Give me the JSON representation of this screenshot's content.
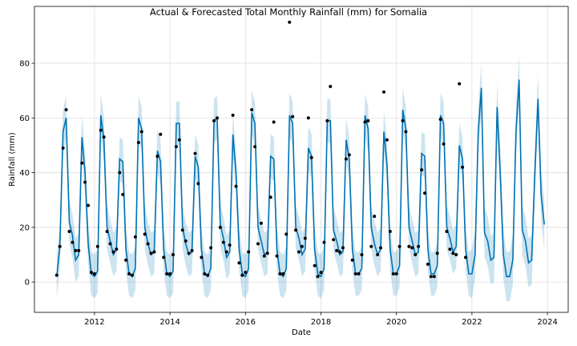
{
  "chart_data": {
    "type": "forecast",
    "title": "Actual & Forecasted Total Monthly Rainfall (mm) for Somalia",
    "x_label": "Date",
    "y_label": "Rainfall (mm)",
    "xlim": [
      2010.41,
      2024.55
    ],
    "ylim": [
      -11.1,
      100.8
    ],
    "xticks": [
      2012,
      2014,
      2016,
      2018,
      2020,
      2022,
      2024
    ],
    "yticks": [
      0,
      20,
      40,
      60,
      80
    ],
    "grid": true,
    "line_color": "#0072b2",
    "band_color": "#0072b2",
    "point_color": "#000000",
    "x": [
      2011.0,
      2011.083,
      2011.167,
      2011.25,
      2011.333,
      2011.417,
      2011.5,
      2011.583,
      2011.667,
      2011.75,
      2011.833,
      2011.917,
      2012.0,
      2012.083,
      2012.167,
      2012.25,
      2012.333,
      2012.417,
      2012.5,
      2012.583,
      2012.667,
      2012.75,
      2012.833,
      2012.917,
      2013.0,
      2013.083,
      2013.167,
      2013.25,
      2013.333,
      2013.417,
      2013.5,
      2013.583,
      2013.667,
      2013.75,
      2013.833,
      2013.917,
      2014.0,
      2014.083,
      2014.167,
      2014.25,
      2014.333,
      2014.417,
      2014.5,
      2014.583,
      2014.667,
      2014.75,
      2014.833,
      2014.917,
      2015.0,
      2015.083,
      2015.167,
      2015.25,
      2015.333,
      2015.417,
      2015.5,
      2015.583,
      2015.667,
      2015.75,
      2015.833,
      2015.917,
      2016.0,
      2016.083,
      2016.167,
      2016.25,
      2016.333,
      2016.417,
      2016.5,
      2016.583,
      2016.667,
      2016.75,
      2016.833,
      2016.917,
      2017.0,
      2017.083,
      2017.167,
      2017.25,
      2017.333,
      2017.417,
      2017.5,
      2017.583,
      2017.667,
      2017.75,
      2017.833,
      2017.917,
      2018.0,
      2018.083,
      2018.167,
      2018.25,
      2018.333,
      2018.417,
      2018.5,
      2018.583,
      2018.667,
      2018.75,
      2018.833,
      2018.917,
      2019.0,
      2019.083,
      2019.167,
      2019.25,
      2019.333,
      2019.417,
      2019.5,
      2019.583,
      2019.667,
      2019.75,
      2019.833,
      2019.917,
      2020.0,
      2020.083,
      2020.167,
      2020.25,
      2020.333,
      2020.417,
      2020.5,
      2020.583,
      2020.667,
      2020.75,
      2020.833,
      2020.917,
      2021.0,
      2021.083,
      2021.167,
      2021.25,
      2021.333,
      2021.417,
      2021.5,
      2021.583,
      2021.667,
      2021.75,
      2021.833,
      2021.917,
      2022.0,
      2022.083,
      2022.167,
      2022.25,
      2022.333,
      2022.417,
      2022.5,
      2022.583,
      2022.667,
      2022.75,
      2022.833,
      2022.917,
      2023.0,
      2023.083,
      2023.167,
      2023.25,
      2023.333,
      2023.417,
      2023.5,
      2023.583,
      2023.667,
      2023.75,
      2023.833,
      2023.917
    ],
    "observed": [
      2.5,
      13,
      49,
      63,
      18.5,
      14.5,
      11.5,
      11.5,
      43.5,
      36.5,
      28,
      3.5,
      3,
      13,
      55.5,
      53,
      18.5,
      14,
      11,
      12,
      40,
      32,
      8,
      3,
      2.5,
      16.5,
      51,
      55,
      17.5,
      14,
      10.5,
      11,
      46,
      54,
      9,
      3,
      3,
      10,
      49.5,
      52,
      19,
      15,
      10.5,
      11.5,
      47,
      36,
      9,
      3,
      2.5,
      12.5,
      59,
      60,
      20,
      14.5,
      11,
      13.5,
      61,
      35,
      7,
      2.5,
      3.5,
      11,
      63,
      49.5,
      14,
      21.5,
      9.5,
      10.5,
      31,
      58.5,
      9.5,
      3,
      3,
      17.5,
      95,
      60.5,
      19,
      11,
      13,
      16,
      60,
      45.5,
      6,
      2,
      3.5,
      14.5,
      59,
      71.5,
      15.5,
      11.5,
      11,
      12.5,
      45,
      46.5,
      8,
      3,
      3,
      10,
      58.5,
      59,
      13,
      24,
      10,
      12.5,
      69.5,
      52,
      18.5,
      3,
      3,
      13,
      59,
      55,
      13,
      12.5,
      10,
      13,
      41,
      32.5,
      6.5,
      2,
      2,
      10.5,
      59.5,
      50.5,
      18.5,
      12,
      10.5,
      10,
      72.5,
      42,
      9,
      null,
      null,
      null,
      null,
      null,
      null,
      null,
      null,
      null,
      null,
      null,
      null,
      null,
      null,
      null,
      null,
      null,
      null,
      null,
      null,
      null,
      null,
      null,
      null,
      null
    ],
    "yhat": [
      2,
      13,
      55,
      60,
      22,
      17,
      8,
      10,
      53,
      40,
      14,
      3,
      2,
      4,
      61,
      52,
      20,
      15,
      10,
      12,
      45,
      44,
      12,
      3,
      2,
      5,
      60,
      56,
      20,
      14,
      10,
      11,
      48,
      44,
      12,
      3,
      2,
      4,
      58,
      58,
      20,
      14,
      10,
      11,
      46,
      42,
      12,
      3,
      2,
      5,
      59,
      60,
      21,
      16,
      9,
      11,
      54,
      40,
      12,
      3,
      2,
      5,
      62,
      58,
      20,
      15,
      10,
      11,
      46,
      45,
      12,
      3,
      2,
      5,
      61,
      58,
      20,
      16,
      10,
      12,
      49,
      46,
      12,
      3,
      2,
      5,
      59,
      59,
      19,
      15,
      10,
      11,
      52,
      45,
      12,
      3,
      3,
      5,
      61,
      56,
      20,
      14,
      10,
      12,
      55,
      43,
      12,
      3,
      3,
      6,
      63,
      56,
      20,
      15,
      10,
      11,
      47,
      46,
      12,
      3,
      3,
      6,
      61,
      58,
      20,
      16,
      11,
      13,
      50,
      45,
      12,
      3,
      3,
      10,
      55,
      71,
      18,
      15,
      8,
      9,
      64,
      40,
      10,
      2,
      2,
      8,
      55,
      74,
      19,
      15,
      7,
      8,
      40,
      67,
      32,
      21
    ],
    "yhat_lower": [
      -6,
      5,
      47,
      52,
      14,
      9,
      0,
      2,
      45,
      32,
      6,
      -5,
      -6,
      -4,
      53,
      44,
      12,
      7,
      2,
      4,
      37,
      36,
      4,
      -5,
      -6,
      -3,
      52,
      48,
      12,
      6,
      2,
      3,
      40,
      36,
      4,
      -5,
      -6,
      -4,
      50,
      50,
      12,
      6,
      2,
      3,
      38,
      34,
      4,
      -5,
      -6,
      -3,
      51,
      52,
      13,
      8,
      1,
      3,
      46,
      32,
      4,
      -5,
      -6,
      -3,
      54,
      50,
      12,
      7,
      2,
      3,
      38,
      37,
      4,
      -5,
      -6,
      -3,
      53,
      50,
      12,
      8,
      2,
      4,
      41,
      38,
      4,
      -5,
      -6,
      -3,
      51,
      51,
      11,
      7,
      2,
      3,
      44,
      37,
      4,
      -5,
      -5,
      -3,
      53,
      48,
      12,
      6,
      2,
      4,
      47,
      35,
      4,
      -5,
      -5,
      -2,
      55,
      48,
      12,
      7,
      2,
      3,
      39,
      38,
      4,
      -5,
      -5,
      -2,
      53,
      50,
      12,
      8,
      3,
      5,
      42,
      37,
      4,
      -5,
      -6,
      1,
      46,
      62,
      9,
      6,
      -1,
      0,
      55,
      31,
      1,
      -7,
      -7,
      -1,
      46,
      65,
      10,
      6,
      -2,
      -1,
      31,
      58,
      23,
      12
    ],
    "yhat_upper": [
      10,
      21,
      63,
      68,
      30,
      25,
      16,
      18,
      61,
      48,
      22,
      11,
      10,
      12,
      69,
      60,
      28,
      23,
      18,
      20,
      53,
      52,
      20,
      11,
      10,
      13,
      68,
      64,
      28,
      22,
      18,
      19,
      56,
      52,
      20,
      11,
      10,
      12,
      66,
      66,
      28,
      22,
      18,
      19,
      54,
      50,
      20,
      11,
      10,
      13,
      67,
      68,
      29,
      24,
      17,
      19,
      62,
      48,
      20,
      11,
      10,
      13,
      70,
      66,
      28,
      23,
      18,
      19,
      54,
      53,
      20,
      11,
      10,
      13,
      69,
      66,
      28,
      24,
      18,
      20,
      57,
      54,
      20,
      11,
      10,
      13,
      67,
      67,
      27,
      23,
      18,
      19,
      60,
      53,
      20,
      11,
      11,
      13,
      69,
      64,
      28,
      22,
      18,
      20,
      63,
      51,
      20,
      11,
      11,
      14,
      71,
      64,
      28,
      23,
      18,
      19,
      55,
      54,
      20,
      11,
      11,
      14,
      69,
      66,
      28,
      24,
      19,
      21,
      58,
      53,
      20,
      11,
      12,
      19,
      64,
      80,
      27,
      24,
      17,
      18,
      73,
      49,
      19,
      11,
      11,
      17,
      64,
      83,
      28,
      24,
      16,
      17,
      49,
      76,
      41,
      30
    ]
  }
}
